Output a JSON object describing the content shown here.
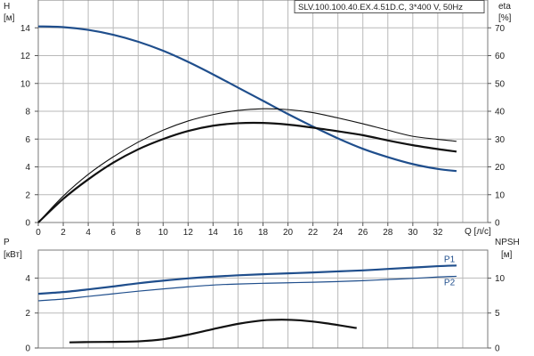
{
  "chart_data": [
    {
      "type": "line",
      "title": "SLV.100.100.40.EX.4.51D.C, 3*400 V, 50Hz",
      "xlabel": "Q [л/с]",
      "ylabel_left": [
        "H",
        "[м]"
      ],
      "ylabel_right": [
        "eta",
        "[%]"
      ],
      "grid": true,
      "xlim": [
        0,
        36
      ],
      "ylim_left": [
        0,
        16
      ],
      "ylim_right": [
        0,
        80
      ],
      "x_ticks": [
        0,
        2,
        4,
        6,
        8,
        10,
        12,
        14,
        16,
        18,
        20,
        22,
        24,
        26,
        28,
        30,
        32
      ],
      "x_tick_labels": [
        "0",
        "2",
        "4",
        "6",
        "8",
        "10",
        "12",
        "14",
        "16",
        "18",
        "20",
        "22",
        "24",
        "26",
        "28",
        "30",
        "32"
      ],
      "y_left_ticks": [
        0,
        2,
        4,
        6,
        8,
        10,
        12,
        14
      ],
      "y_left_tick_labels": [
        "0",
        "2",
        "4",
        "6",
        "8",
        "10",
        "12",
        "14"
      ],
      "y_right_ticks": [
        0,
        10,
        20,
        30,
        40,
        50,
        60,
        70
      ],
      "y_right_tick_labels": [
        "0",
        "10",
        "20",
        "30",
        "40",
        "50",
        "60",
        "70"
      ],
      "series": [
        {
          "color": "#1f4e8c",
          "axis": "left",
          "points": [
            [
              0,
              14.1
            ],
            [
              2,
              14.05
            ],
            [
              4,
              13.85
            ],
            [
              6,
              13.5
            ],
            [
              8,
              13.0
            ],
            [
              10,
              12.35
            ],
            [
              12,
              11.55
            ],
            [
              14,
              10.65
            ],
            [
              16,
              9.7
            ],
            [
              18,
              8.75
            ],
            [
              20,
              7.8
            ],
            [
              22,
              6.9
            ],
            [
              24,
              6.05
            ],
            [
              26,
              5.3
            ],
            [
              28,
              4.7
            ],
            [
              30,
              4.2
            ],
            [
              32,
              3.85
            ],
            [
              33.5,
              3.7
            ]
          ]
        },
        {
          "color": "#111111",
          "axis": "right",
          "points": [
            [
              0,
              0
            ],
            [
              2,
              8.5
            ],
            [
              4,
              15.5
            ],
            [
              6,
              21.5
            ],
            [
              8,
              26.3
            ],
            [
              10,
              30.0
            ],
            [
              12,
              32.9
            ],
            [
              14,
              34.8
            ],
            [
              16,
              35.7
            ],
            [
              18,
              35.8
            ],
            [
              20,
              35.2
            ],
            [
              22,
              34.1
            ],
            [
              24,
              32.8
            ],
            [
              26,
              31.4
            ],
            [
              28,
              29.5
            ],
            [
              30,
              27.8
            ],
            [
              32,
              26.4
            ],
            [
              33.5,
              25.5
            ]
          ]
        },
        {
          "color": "#111111",
          "axis": "right",
          "points": [
            [
              0,
              0
            ],
            [
              2,
              9.5
            ],
            [
              4,
              17.3
            ],
            [
              6,
              23.6
            ],
            [
              8,
              28.9
            ],
            [
              10,
              33.2
            ],
            [
              12,
              36.5
            ],
            [
              14,
              38.8
            ],
            [
              16,
              40.3
            ],
            [
              18,
              40.9
            ],
            [
              20,
              40.6
            ],
            [
              22,
              39.5
            ],
            [
              24,
              37.6
            ],
            [
              26,
              35.5
            ],
            [
              28,
              33.2
            ],
            [
              30,
              31.0
            ],
            [
              32,
              29.9
            ],
            [
              33.5,
              29.2
            ]
          ]
        }
      ]
    },
    {
      "type": "line",
      "xlim": [
        0,
        36
      ],
      "ylabel_left": [
        "P",
        "[кВт]"
      ],
      "ylabel_right": [
        "NPSH",
        "[м]"
      ],
      "grid": true,
      "ylim_left": [
        0,
        5.6
      ],
      "ylim_right": [
        0,
        14
      ],
      "y_left_ticks": [
        0,
        2,
        4
      ],
      "y_left_tick_labels": [
        "0",
        "2",
        "4"
      ],
      "y_right_ticks": [
        0,
        5,
        10
      ],
      "y_right_tick_labels": [
        "0",
        "5",
        "10"
      ],
      "series": [
        {
          "name": "P1",
          "color": "#1f4e8c",
          "axis": "left",
          "points": [
            [
              0,
              3.1
            ],
            [
              2,
              3.2
            ],
            [
              4,
              3.35
            ],
            [
              6,
              3.52
            ],
            [
              8,
              3.7
            ],
            [
              10,
              3.85
            ],
            [
              12,
              3.98
            ],
            [
              14,
              4.08
            ],
            [
              16,
              4.16
            ],
            [
              18,
              4.22
            ],
            [
              20,
              4.27
            ],
            [
              22,
              4.32
            ],
            [
              24,
              4.38
            ],
            [
              26,
              4.44
            ],
            [
              28,
              4.52
            ],
            [
              30,
              4.6
            ],
            [
              32,
              4.68
            ],
            [
              33.5,
              4.72
            ]
          ]
        },
        {
          "name": "P2",
          "color": "#1f4e8c",
          "axis": "left",
          "points": [
            [
              0,
              2.7
            ],
            [
              2,
              2.8
            ],
            [
              4,
              2.95
            ],
            [
              6,
              3.1
            ],
            [
              8,
              3.25
            ],
            [
              10,
              3.38
            ],
            [
              12,
              3.5
            ],
            [
              14,
              3.6
            ],
            [
              16,
              3.66
            ],
            [
              18,
              3.7
            ],
            [
              20,
              3.73
            ],
            [
              22,
              3.76
            ],
            [
              24,
              3.8
            ],
            [
              26,
              3.85
            ],
            [
              28,
              3.92
            ],
            [
              30,
              3.98
            ],
            [
              32,
              4.06
            ],
            [
              33.5,
              4.1
            ]
          ]
        },
        {
          "color": "#111111",
          "axis": "right",
          "points": [
            [
              2.5,
              0.8
            ],
            [
              4,
              0.85
            ],
            [
              6,
              0.88
            ],
            [
              8,
              0.95
            ],
            [
              10,
              1.25
            ],
            [
              12,
              1.9
            ],
            [
              14,
              2.7
            ],
            [
              16,
              3.45
            ],
            [
              18,
              3.95
            ],
            [
              19.5,
              4.05
            ],
            [
              21,
              3.95
            ],
            [
              23,
              3.55
            ],
            [
              25.5,
              2.85
            ]
          ]
        }
      ]
    }
  ]
}
